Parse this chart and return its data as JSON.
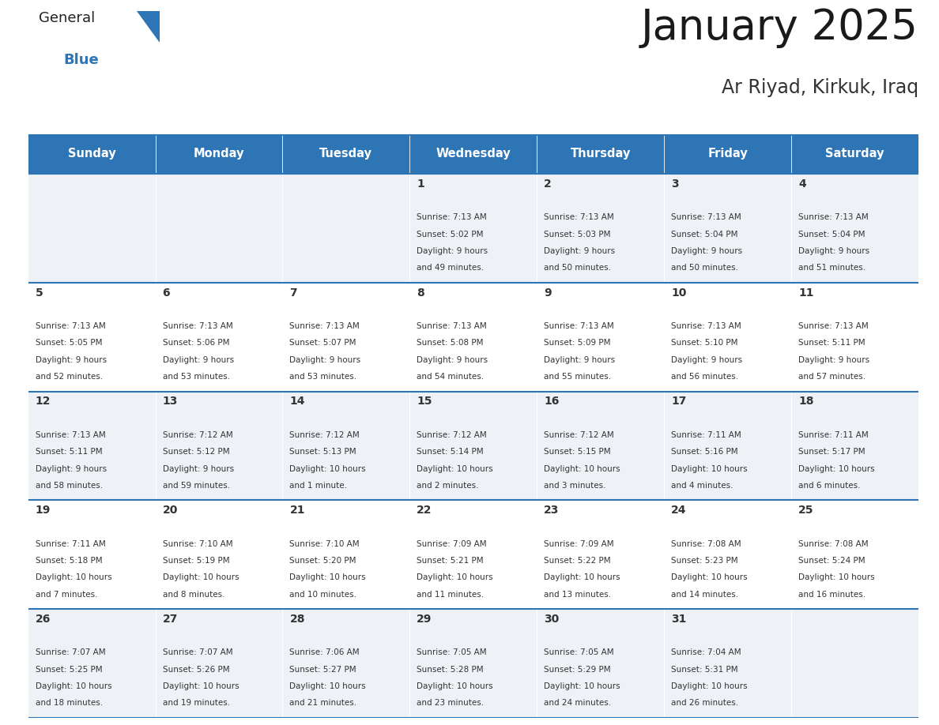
{
  "title": "January 2025",
  "subtitle": "Ar Riyad, Kirkuk, Iraq",
  "header_color": "#2E75B6",
  "header_text_color": "#FFFFFF",
  "cell_bg_even": "#FFFFFF",
  "cell_bg_odd": "#EEF2F7",
  "text_color": "#333333",
  "border_color": "#2E75B6",
  "days_of_week": [
    "Sunday",
    "Monday",
    "Tuesday",
    "Wednesday",
    "Thursday",
    "Friday",
    "Saturday"
  ],
  "calendar_data": [
    [
      {
        "day": null,
        "sunrise": null,
        "sunset": null,
        "daylight": null
      },
      {
        "day": null,
        "sunrise": null,
        "sunset": null,
        "daylight": null
      },
      {
        "day": null,
        "sunrise": null,
        "sunset": null,
        "daylight": null
      },
      {
        "day": 1,
        "sunrise": "7:13 AM",
        "sunset": "5:02 PM",
        "daylight": "9 hours\nand 49 minutes."
      },
      {
        "day": 2,
        "sunrise": "7:13 AM",
        "sunset": "5:03 PM",
        "daylight": "9 hours\nand 50 minutes."
      },
      {
        "day": 3,
        "sunrise": "7:13 AM",
        "sunset": "5:04 PM",
        "daylight": "9 hours\nand 50 minutes."
      },
      {
        "day": 4,
        "sunrise": "7:13 AM",
        "sunset": "5:04 PM",
        "daylight": "9 hours\nand 51 minutes."
      }
    ],
    [
      {
        "day": 5,
        "sunrise": "7:13 AM",
        "sunset": "5:05 PM",
        "daylight": "9 hours\nand 52 minutes."
      },
      {
        "day": 6,
        "sunrise": "7:13 AM",
        "sunset": "5:06 PM",
        "daylight": "9 hours\nand 53 minutes."
      },
      {
        "day": 7,
        "sunrise": "7:13 AM",
        "sunset": "5:07 PM",
        "daylight": "9 hours\nand 53 minutes."
      },
      {
        "day": 8,
        "sunrise": "7:13 AM",
        "sunset": "5:08 PM",
        "daylight": "9 hours\nand 54 minutes."
      },
      {
        "day": 9,
        "sunrise": "7:13 AM",
        "sunset": "5:09 PM",
        "daylight": "9 hours\nand 55 minutes."
      },
      {
        "day": 10,
        "sunrise": "7:13 AM",
        "sunset": "5:10 PM",
        "daylight": "9 hours\nand 56 minutes."
      },
      {
        "day": 11,
        "sunrise": "7:13 AM",
        "sunset": "5:11 PM",
        "daylight": "9 hours\nand 57 minutes."
      }
    ],
    [
      {
        "day": 12,
        "sunrise": "7:13 AM",
        "sunset": "5:11 PM",
        "daylight": "9 hours\nand 58 minutes."
      },
      {
        "day": 13,
        "sunrise": "7:12 AM",
        "sunset": "5:12 PM",
        "daylight": "9 hours\nand 59 minutes."
      },
      {
        "day": 14,
        "sunrise": "7:12 AM",
        "sunset": "5:13 PM",
        "daylight": "10 hours\nand 1 minute."
      },
      {
        "day": 15,
        "sunrise": "7:12 AM",
        "sunset": "5:14 PM",
        "daylight": "10 hours\nand 2 minutes."
      },
      {
        "day": 16,
        "sunrise": "7:12 AM",
        "sunset": "5:15 PM",
        "daylight": "10 hours\nand 3 minutes."
      },
      {
        "day": 17,
        "sunrise": "7:11 AM",
        "sunset": "5:16 PM",
        "daylight": "10 hours\nand 4 minutes."
      },
      {
        "day": 18,
        "sunrise": "7:11 AM",
        "sunset": "5:17 PM",
        "daylight": "10 hours\nand 6 minutes."
      }
    ],
    [
      {
        "day": 19,
        "sunrise": "7:11 AM",
        "sunset": "5:18 PM",
        "daylight": "10 hours\nand 7 minutes."
      },
      {
        "day": 20,
        "sunrise": "7:10 AM",
        "sunset": "5:19 PM",
        "daylight": "10 hours\nand 8 minutes."
      },
      {
        "day": 21,
        "sunrise": "7:10 AM",
        "sunset": "5:20 PM",
        "daylight": "10 hours\nand 10 minutes."
      },
      {
        "day": 22,
        "sunrise": "7:09 AM",
        "sunset": "5:21 PM",
        "daylight": "10 hours\nand 11 minutes."
      },
      {
        "day": 23,
        "sunrise": "7:09 AM",
        "sunset": "5:22 PM",
        "daylight": "10 hours\nand 13 minutes."
      },
      {
        "day": 24,
        "sunrise": "7:08 AM",
        "sunset": "5:23 PM",
        "daylight": "10 hours\nand 14 minutes."
      },
      {
        "day": 25,
        "sunrise": "7:08 AM",
        "sunset": "5:24 PM",
        "daylight": "10 hours\nand 16 minutes."
      }
    ],
    [
      {
        "day": 26,
        "sunrise": "7:07 AM",
        "sunset": "5:25 PM",
        "daylight": "10 hours\nand 18 minutes."
      },
      {
        "day": 27,
        "sunrise": "7:07 AM",
        "sunset": "5:26 PM",
        "daylight": "10 hours\nand 19 minutes."
      },
      {
        "day": 28,
        "sunrise": "7:06 AM",
        "sunset": "5:27 PM",
        "daylight": "10 hours\nand 21 minutes."
      },
      {
        "day": 29,
        "sunrise": "7:05 AM",
        "sunset": "5:28 PM",
        "daylight": "10 hours\nand 23 minutes."
      },
      {
        "day": 30,
        "sunrise": "7:05 AM",
        "sunset": "5:29 PM",
        "daylight": "10 hours\nand 24 minutes."
      },
      {
        "day": 31,
        "sunrise": "7:04 AM",
        "sunset": "5:31 PM",
        "daylight": "10 hours\nand 26 minutes."
      },
      {
        "day": null,
        "sunrise": null,
        "sunset": null,
        "daylight": null
      }
    ]
  ],
  "logo_general_color": "#222222",
  "logo_blue_color": "#2E75B6",
  "logo_triangle_color": "#2E75B6",
  "title_fontsize": 38,
  "subtitle_fontsize": 17,
  "header_fontsize": 10.5,
  "day_num_fontsize": 10,
  "cell_text_fontsize": 7.5
}
